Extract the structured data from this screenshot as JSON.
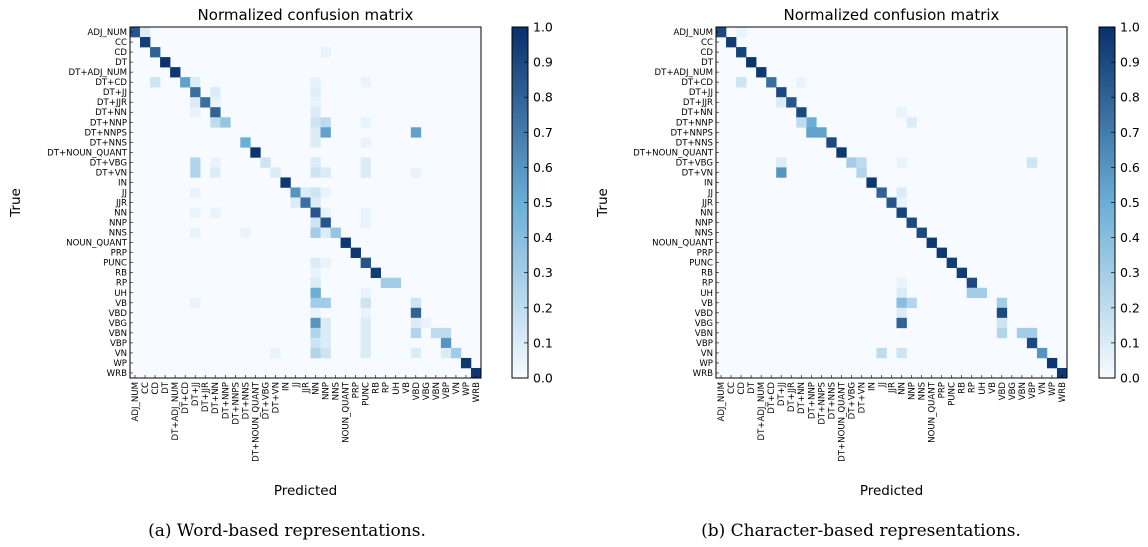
{
  "chart_data": [
    {
      "type": "heatmap",
      "title": "Normalized confusion matrix",
      "xlabel": "Predicted",
      "ylabel": "True",
      "caption": "(a) Word-based representations.",
      "colormap": {
        "low": "#f7fbff",
        "mid": "#6baed6",
        "high": "#08306b"
      },
      "colorbar_ticks": [
        "0.0",
        "0.1",
        "0.2",
        "0.3",
        "0.4",
        "0.5",
        "0.6",
        "0.7",
        "0.8",
        "0.9",
        "1.0"
      ],
      "value_range": [
        0,
        1
      ],
      "labels": [
        "ADJ_NUM",
        "CC",
        "CD",
        "DT",
        "DT+ADJ_NUM",
        "DT+CD",
        "DT+JJ",
        "DT+JJR",
        "DT+NN",
        "DT+NNP",
        "DT+NNPS",
        "DT+NNS",
        "DT+NOUN_QUANT",
        "DT+VBG",
        "DT+VN",
        "IN",
        "JJ",
        "JJR",
        "NN",
        "NNP",
        "NNS",
        "NOUN_QUANT",
        "PRP",
        "PUNC",
        "RB",
        "RP",
        "UH",
        "VB",
        "VBD",
        "VBG",
        "VBN",
        "VBP",
        "VN",
        "WP",
        "WRB"
      ],
      "cells": [
        [
          0,
          0,
          0.85
        ],
        [
          0,
          1,
          0.1
        ],
        [
          1,
          1,
          0.95
        ],
        [
          2,
          2,
          0.8
        ],
        [
          2,
          19,
          0.05
        ],
        [
          3,
          3,
          0.98
        ],
        [
          4,
          4,
          0.97
        ],
        [
          5,
          2,
          0.15
        ],
        [
          5,
          5,
          0.55
        ],
        [
          5,
          6,
          0.1
        ],
        [
          5,
          18,
          0.06
        ],
        [
          5,
          23,
          0.05
        ],
        [
          6,
          6,
          0.75
        ],
        [
          6,
          8,
          0.1
        ],
        [
          6,
          18,
          0.08
        ],
        [
          7,
          6,
          0.1
        ],
        [
          7,
          7,
          0.75
        ],
        [
          7,
          8,
          0.05
        ],
        [
          7,
          18,
          0.05
        ],
        [
          8,
          6,
          0.05
        ],
        [
          8,
          8,
          0.8
        ],
        [
          8,
          18,
          0.1
        ],
        [
          9,
          8,
          0.2
        ],
        [
          9,
          9,
          0.35
        ],
        [
          9,
          18,
          0.15
        ],
        [
          9,
          19,
          0.2
        ],
        [
          9,
          23,
          0.05
        ],
        [
          10,
          18,
          0.1
        ],
        [
          10,
          19,
          0.55
        ],
        [
          10,
          28,
          0.55
        ],
        [
          11,
          11,
          0.5
        ],
        [
          11,
          18,
          0.1
        ],
        [
          11,
          23,
          0.05
        ],
        [
          12,
          12,
          0.98
        ],
        [
          13,
          6,
          0.25
        ],
        [
          13,
          8,
          0.05
        ],
        [
          13,
          13,
          0.15
        ],
        [
          13,
          18,
          0.1
        ],
        [
          13,
          23,
          0.1
        ],
        [
          14,
          6,
          0.25
        ],
        [
          14,
          8,
          0.1
        ],
        [
          14,
          14,
          0.1
        ],
        [
          14,
          18,
          0.15
        ],
        [
          14,
          19,
          0.1
        ],
        [
          14,
          23,
          0.1
        ],
        [
          14,
          28,
          0.05
        ],
        [
          15,
          15,
          0.97
        ],
        [
          16,
          6,
          0.05
        ],
        [
          16,
          16,
          0.6
        ],
        [
          16,
          17,
          0.1
        ],
        [
          16,
          18,
          0.15
        ],
        [
          16,
          19,
          0.05
        ],
        [
          17,
          16,
          0.1
        ],
        [
          17,
          17,
          0.75
        ],
        [
          17,
          18,
          0.1
        ],
        [
          18,
          6,
          0.05
        ],
        [
          18,
          8,
          0.05
        ],
        [
          18,
          18,
          0.85
        ],
        [
          18,
          19,
          0.05
        ],
        [
          18,
          23,
          0.05
        ],
        [
          19,
          18,
          0.15
        ],
        [
          19,
          19,
          0.85
        ],
        [
          19,
          23,
          0.05
        ],
        [
          20,
          6,
          0.05
        ],
        [
          20,
          11,
          0.05
        ],
        [
          20,
          18,
          0.3
        ],
        [
          20,
          19,
          0.1
        ],
        [
          20,
          20,
          0.35
        ],
        [
          21,
          21,
          0.97
        ],
        [
          22,
          22,
          0.97
        ],
        [
          23,
          18,
          0.1
        ],
        [
          23,
          19,
          0.05
        ],
        [
          23,
          23,
          0.85
        ],
        [
          24,
          18,
          0.05
        ],
        [
          24,
          24,
          0.95
        ],
        [
          25,
          18,
          0.1
        ],
        [
          25,
          25,
          0.3
        ],
        [
          25,
          26,
          0.3
        ],
        [
          26,
          18,
          0.5
        ],
        [
          26,
          23,
          0.05
        ],
        [
          27,
          6,
          0.05
        ],
        [
          27,
          18,
          0.3
        ],
        [
          27,
          19,
          0.3
        ],
        [
          27,
          23,
          0.15
        ],
        [
          27,
          28,
          0.15
        ],
        [
          28,
          18,
          0.05
        ],
        [
          28,
          23,
          0.05
        ],
        [
          28,
          28,
          0.8
        ],
        [
          29,
          18,
          0.6
        ],
        [
          29,
          19,
          0.1
        ],
        [
          29,
          23,
          0.1
        ],
        [
          29,
          28,
          0.1
        ],
        [
          29,
          29,
          0.05
        ],
        [
          30,
          18,
          0.25
        ],
        [
          30,
          19,
          0.1
        ],
        [
          30,
          23,
          0.1
        ],
        [
          30,
          28,
          0.25
        ],
        [
          30,
          30,
          0.2
        ],
        [
          30,
          31,
          0.2
        ],
        [
          31,
          18,
          0.15
        ],
        [
          31,
          19,
          0.1
        ],
        [
          31,
          23,
          0.1
        ],
        [
          31,
          31,
          0.6
        ],
        [
          32,
          14,
          0.05
        ],
        [
          32,
          18,
          0.25
        ],
        [
          32,
          19,
          0.15
        ],
        [
          32,
          23,
          0.1
        ],
        [
          32,
          28,
          0.1
        ],
        [
          32,
          31,
          0.1
        ],
        [
          32,
          32,
          0.3
        ],
        [
          33,
          33,
          0.97
        ],
        [
          34,
          34,
          0.97
        ]
      ]
    },
    {
      "type": "heatmap",
      "title": "Normalized confusion matrix",
      "xlabel": "Predicted",
      "ylabel": "True",
      "caption": "(b) Character-based representations.",
      "colormap": {
        "low": "#f7fbff",
        "mid": "#6baed6",
        "high": "#08306b"
      },
      "colorbar_ticks": [
        "0.0",
        "0.1",
        "0.2",
        "0.3",
        "0.4",
        "0.5",
        "0.6",
        "0.7",
        "0.8",
        "0.9",
        "1.0"
      ],
      "value_range": [
        0,
        1
      ],
      "labels": [
        "ADJ_NUM",
        "CC",
        "CD",
        "DT",
        "DT+ADJ_NUM",
        "DT+CD",
        "DT+JJ",
        "DT+JJR",
        "DT+NN",
        "DT+NNP",
        "DT+NNPS",
        "DT+NNS",
        "DT+NOUN_QUANT",
        "DT+VBG",
        "DT+VN",
        "IN",
        "JJ",
        "JJR",
        "NN",
        "NNP",
        "NNS",
        "NOUN_QUANT",
        "PRP",
        "PUNC",
        "RB",
        "RP",
        "UH",
        "VB",
        "VBD",
        "VBG",
        "VBN",
        "VBP",
        "VN",
        "WP",
        "WRB"
      ],
      "cells": [
        [
          0,
          0,
          0.9
        ],
        [
          0,
          2,
          0.05
        ],
        [
          1,
          1,
          0.95
        ],
        [
          2,
          2,
          0.92
        ],
        [
          3,
          3,
          0.98
        ],
        [
          4,
          4,
          0.97
        ],
        [
          5,
          2,
          0.15
        ],
        [
          5,
          5,
          0.75
        ],
        [
          5,
          8,
          0.05
        ],
        [
          6,
          6,
          0.9
        ],
        [
          7,
          6,
          0.1
        ],
        [
          7,
          7,
          0.85
        ],
        [
          8,
          8,
          0.9
        ],
        [
          8,
          18,
          0.05
        ],
        [
          9,
          9,
          0.5
        ],
        [
          9,
          8,
          0.2
        ],
        [
          9,
          19,
          0.1
        ],
        [
          10,
          9,
          0.55
        ],
        [
          10,
          10,
          0.55
        ],
        [
          11,
          11,
          0.9
        ],
        [
          12,
          12,
          0.97
        ],
        [
          13,
          6,
          0.1
        ],
        [
          13,
          13,
          0.3
        ],
        [
          13,
          14,
          0.2
        ],
        [
          13,
          18,
          0.05
        ],
        [
          13,
          31,
          0.15
        ],
        [
          14,
          6,
          0.6
        ],
        [
          14,
          14,
          0.25
        ],
        [
          15,
          15,
          0.97
        ],
        [
          16,
          16,
          0.8
        ],
        [
          16,
          18,
          0.1
        ],
        [
          17,
          17,
          0.85
        ],
        [
          17,
          18,
          0.05
        ],
        [
          18,
          18,
          0.92
        ],
        [
          19,
          19,
          0.9
        ],
        [
          20,
          20,
          0.9
        ],
        [
          21,
          21,
          0.97
        ],
        [
          22,
          22,
          0.97
        ],
        [
          23,
          23,
          0.95
        ],
        [
          24,
          24,
          0.95
        ],
        [
          25,
          25,
          0.9
        ],
        [
          25,
          18,
          0.05
        ],
        [
          26,
          25,
          0.3
        ],
        [
          26,
          26,
          0.3
        ],
        [
          26,
          18,
          0.1
        ],
        [
          27,
          18,
          0.4
        ],
        [
          27,
          19,
          0.25
        ],
        [
          27,
          28,
          0.3
        ],
        [
          28,
          28,
          0.9
        ],
        [
          28,
          18,
          0.1
        ],
        [
          29,
          18,
          0.8
        ],
        [
          29,
          28,
          0.15
        ],
        [
          30,
          28,
          0.25
        ],
        [
          30,
          30,
          0.3
        ],
        [
          30,
          31,
          0.3
        ],
        [
          31,
          31,
          0.9
        ],
        [
          32,
          16,
          0.2
        ],
        [
          32,
          18,
          0.15
        ],
        [
          32,
          32,
          0.6
        ],
        [
          33,
          33,
          0.97
        ],
        [
          34,
          34,
          0.97
        ]
      ]
    }
  ]
}
